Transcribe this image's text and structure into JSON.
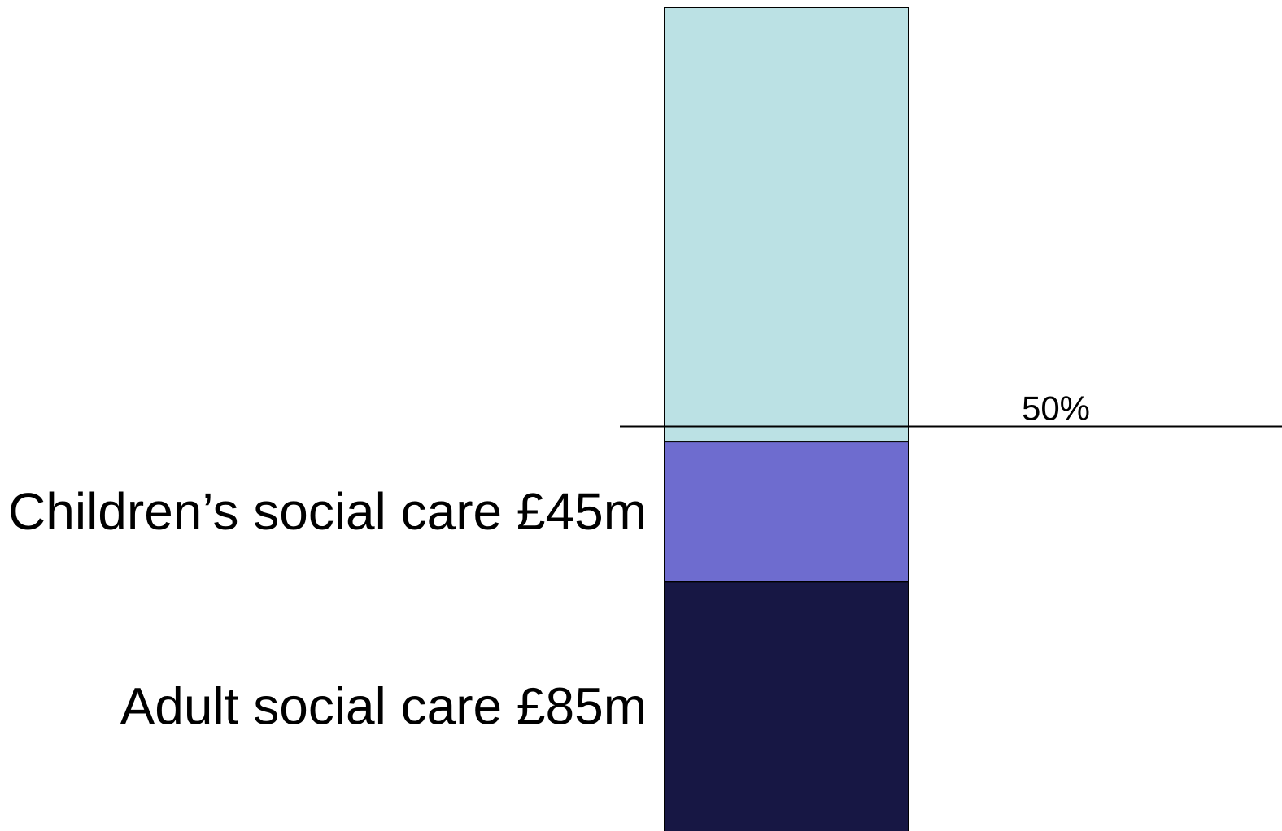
{
  "chart_data": {
    "type": "bar",
    "stacked": true,
    "title": "",
    "xlabel": "",
    "ylabel": "",
    "ylim": [
      0,
      100
    ],
    "grid": false,
    "legend": "none",
    "segments": [
      {
        "label": "Adult social care £85m",
        "amount": 85,
        "percent": 31.5,
        "color": "#171744"
      },
      {
        "label": "Children’s social care £45m",
        "amount": 45,
        "percent": 16.7,
        "color": "#6e6ccf"
      },
      {
        "label": "",
        "amount": null,
        "percent": 51.8,
        "color": "#bbe1e4"
      }
    ],
    "reference_line": {
      "value": 50,
      "label": "50%"
    }
  }
}
